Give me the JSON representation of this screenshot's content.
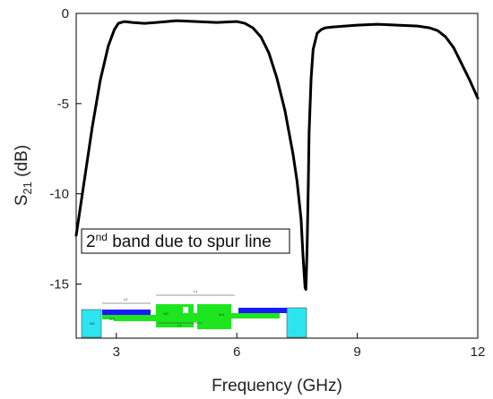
{
  "chart_data": {
    "type": "line",
    "title": "",
    "xlabel": "Frequency (GHz)",
    "ylabel": "S21 (dB)",
    "ylabel_main": "S",
    "ylabel_sub": "21",
    "ylabel_rest": " (dB)",
    "xlim": [
      2,
      12
    ],
    "ylim": [
      -18,
      0
    ],
    "x_ticks": [
      3,
      6,
      9,
      12
    ],
    "y_ticks": [
      0,
      -5,
      -10,
      -15
    ],
    "grid": false,
    "series": [
      {
        "x": [
          2.0,
          2.2,
          2.4,
          2.6,
          2.8,
          2.95,
          3.05,
          3.2,
          3.4,
          3.7,
          4.0,
          4.5,
          5.0,
          5.5,
          6.0,
          6.2,
          6.4,
          6.6,
          6.8,
          7.0,
          7.2,
          7.4,
          7.5,
          7.6,
          7.65,
          7.7,
          7.72,
          7.75,
          7.78,
          7.8,
          7.85,
          7.9,
          8.0,
          8.1,
          8.2,
          8.4,
          8.7,
          9.0,
          9.5,
          10.0,
          10.5,
          10.8,
          11.0,
          11.2,
          11.4,
          11.6,
          11.8,
          12.0
        ],
        "y": [
          -12.3,
          -9.3,
          -6.3,
          -3.7,
          -1.8,
          -0.9,
          -0.55,
          -0.45,
          -0.5,
          -0.55,
          -0.5,
          -0.4,
          -0.45,
          -0.5,
          -0.45,
          -0.55,
          -0.8,
          -1.3,
          -2.2,
          -3.6,
          -5.4,
          -7.8,
          -9.3,
          -11.4,
          -13.5,
          -15.2,
          -15.3,
          -13.0,
          -9.5,
          -6.6,
          -3.6,
          -2.0,
          -1.1,
          -0.9,
          -0.8,
          -0.75,
          -0.7,
          -0.65,
          -0.6,
          -0.65,
          -0.7,
          -0.8,
          -0.95,
          -1.3,
          -1.9,
          -2.8,
          -3.7,
          -4.7
        ]
      }
    ],
    "annotations": [
      {
        "text_before": "2",
        "sup": "nd",
        "text_after": " band due to spur line"
      }
    ]
  },
  "inset": {
    "dim_labels": [
      "L2",
      "L1",
      "W2",
      "W3",
      "L3",
      "W1",
      "W4"
    ]
  },
  "colors": {
    "curve": "#000000",
    "inset_blue": "#1a1aff",
    "inset_green": "#1ee61e",
    "inset_cyan": "#2de5f0"
  }
}
